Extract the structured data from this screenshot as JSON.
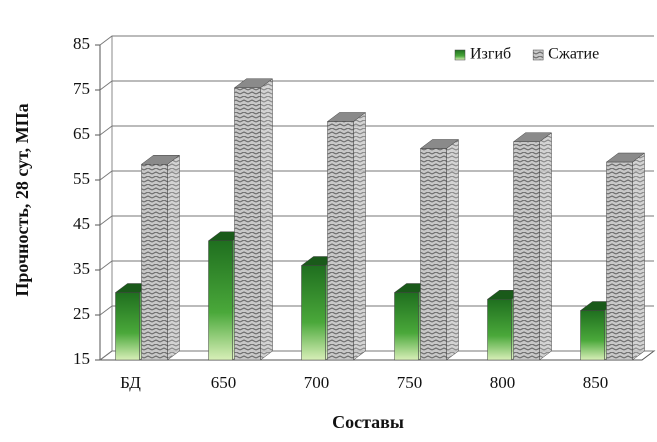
{
  "chart_data": {
    "type": "bar",
    "categories": [
      "БД",
      "650",
      "700",
      "750",
      "800",
      "850"
    ],
    "series": [
      {
        "name": "Изгиб",
        "color": "#2e8b2e",
        "values": [
          30,
          41.5,
          36,
          30,
          28.5,
          26
        ]
      },
      {
        "name": "Сжатие",
        "color": "#b0b0b0",
        "values": [
          58.5,
          75.5,
          68,
          62,
          63.5,
          59
        ]
      }
    ],
    "ylim": [
      15,
      85
    ],
    "yticks": [
      15,
      25,
      35,
      45,
      55,
      65,
      75,
      85
    ],
    "y_label": "Прочность, 28 сут, МПа",
    "x_label": "Составы",
    "grid": true,
    "legend": "upper right"
  }
}
